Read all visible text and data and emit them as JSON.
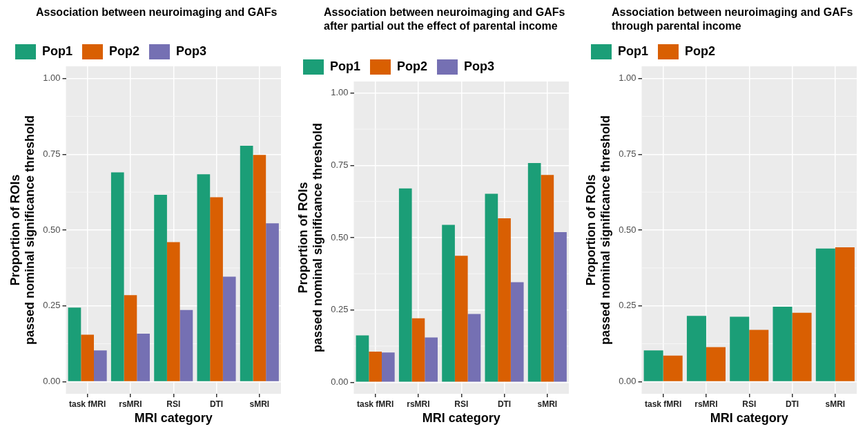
{
  "chart_data": [
    {
      "type": "bar",
      "title": "Association between neuroimaging and GAFs",
      "xlabel": "MRI category",
      "ylabel": "Proportion of ROIs\npassed nominal significance threshold",
      "categories": [
        "task fMRI",
        "rsMRI",
        "RSI",
        "DTI",
        "sMRI"
      ],
      "series": [
        {
          "name": "Pop1",
          "color": "#1b9e77",
          "values": [
            0.244,
            0.69,
            0.616,
            0.684,
            0.778
          ]
        },
        {
          "name": "Pop2",
          "color": "#d95f02",
          "values": [
            0.155,
            0.285,
            0.46,
            0.608,
            0.748
          ]
        },
        {
          "name": "Pop3",
          "color": "#7570b3",
          "values": [
            0.103,
            0.158,
            0.236,
            0.346,
            0.522
          ]
        }
      ],
      "ylim": [
        -0.04,
        1.04
      ],
      "yticks": [
        {
          "value": 0,
          "label": "0.00"
        },
        {
          "value": 0.25,
          "label": "0.25"
        },
        {
          "value": 0.5,
          "label": "0.50"
        },
        {
          "value": 0.75,
          "label": "0.75"
        },
        {
          "value": 1,
          "label": "1.00"
        }
      ],
      "grid": true,
      "legend": "top"
    },
    {
      "type": "bar",
      "title": "Association between neuroimaging and GAFs after partial out the effect of parental income",
      "xlabel": "MRI category",
      "ylabel": "Proportion of ROIs\npassed nominal significance threshold",
      "categories": [
        "task fMRI",
        "rsMRI",
        "RSI",
        "DTI",
        "sMRI"
      ],
      "series": [
        {
          "name": "Pop1",
          "color": "#1b9e77",
          "values": [
            0.162,
            0.67,
            0.544,
            0.652,
            0.758
          ]
        },
        {
          "name": "Pop2",
          "color": "#d95f02",
          "values": [
            0.106,
            0.221,
            0.437,
            0.567,
            0.717
          ]
        },
        {
          "name": "Pop3",
          "color": "#7570b3",
          "values": [
            0.103,
            0.155,
            0.236,
            0.346,
            0.519
          ]
        }
      ],
      "ylim": [
        -0.04,
        1.04
      ],
      "yticks": [
        {
          "value": 0,
          "label": "0.00"
        },
        {
          "value": 0.25,
          "label": "0.25"
        },
        {
          "value": 0.5,
          "label": "0.50"
        },
        {
          "value": 0.75,
          "label": "0.75"
        },
        {
          "value": 1,
          "label": "1.00"
        }
      ],
      "grid": true,
      "legend": "top"
    },
    {
      "type": "bar",
      "title": "Association between neuroimaging and GAFs through parental income",
      "xlabel": "MRI category",
      "ylabel": "Proportion of ROIs\npassed nominal significance threshold",
      "categories": [
        "task fMRI",
        "rsMRI",
        "RSI",
        "DTI",
        "sMRI"
      ],
      "series": [
        {
          "name": "Pop1",
          "color": "#1b9e77",
          "values": [
            0.103,
            0.217,
            0.214,
            0.247,
            0.439
          ]
        },
        {
          "name": "Pop2",
          "color": "#d95f02",
          "values": [
            0.086,
            0.114,
            0.171,
            0.227,
            0.443
          ]
        }
      ],
      "ylim": [
        -0.04,
        1.04
      ],
      "yticks": [
        {
          "value": 0,
          "label": "0.00"
        },
        {
          "value": 0.25,
          "label": "0.25"
        },
        {
          "value": 0.5,
          "label": "0.50"
        },
        {
          "value": 0.75,
          "label": "0.75"
        },
        {
          "value": 1,
          "label": "1.00"
        }
      ],
      "grid": true,
      "legend": "top"
    }
  ]
}
